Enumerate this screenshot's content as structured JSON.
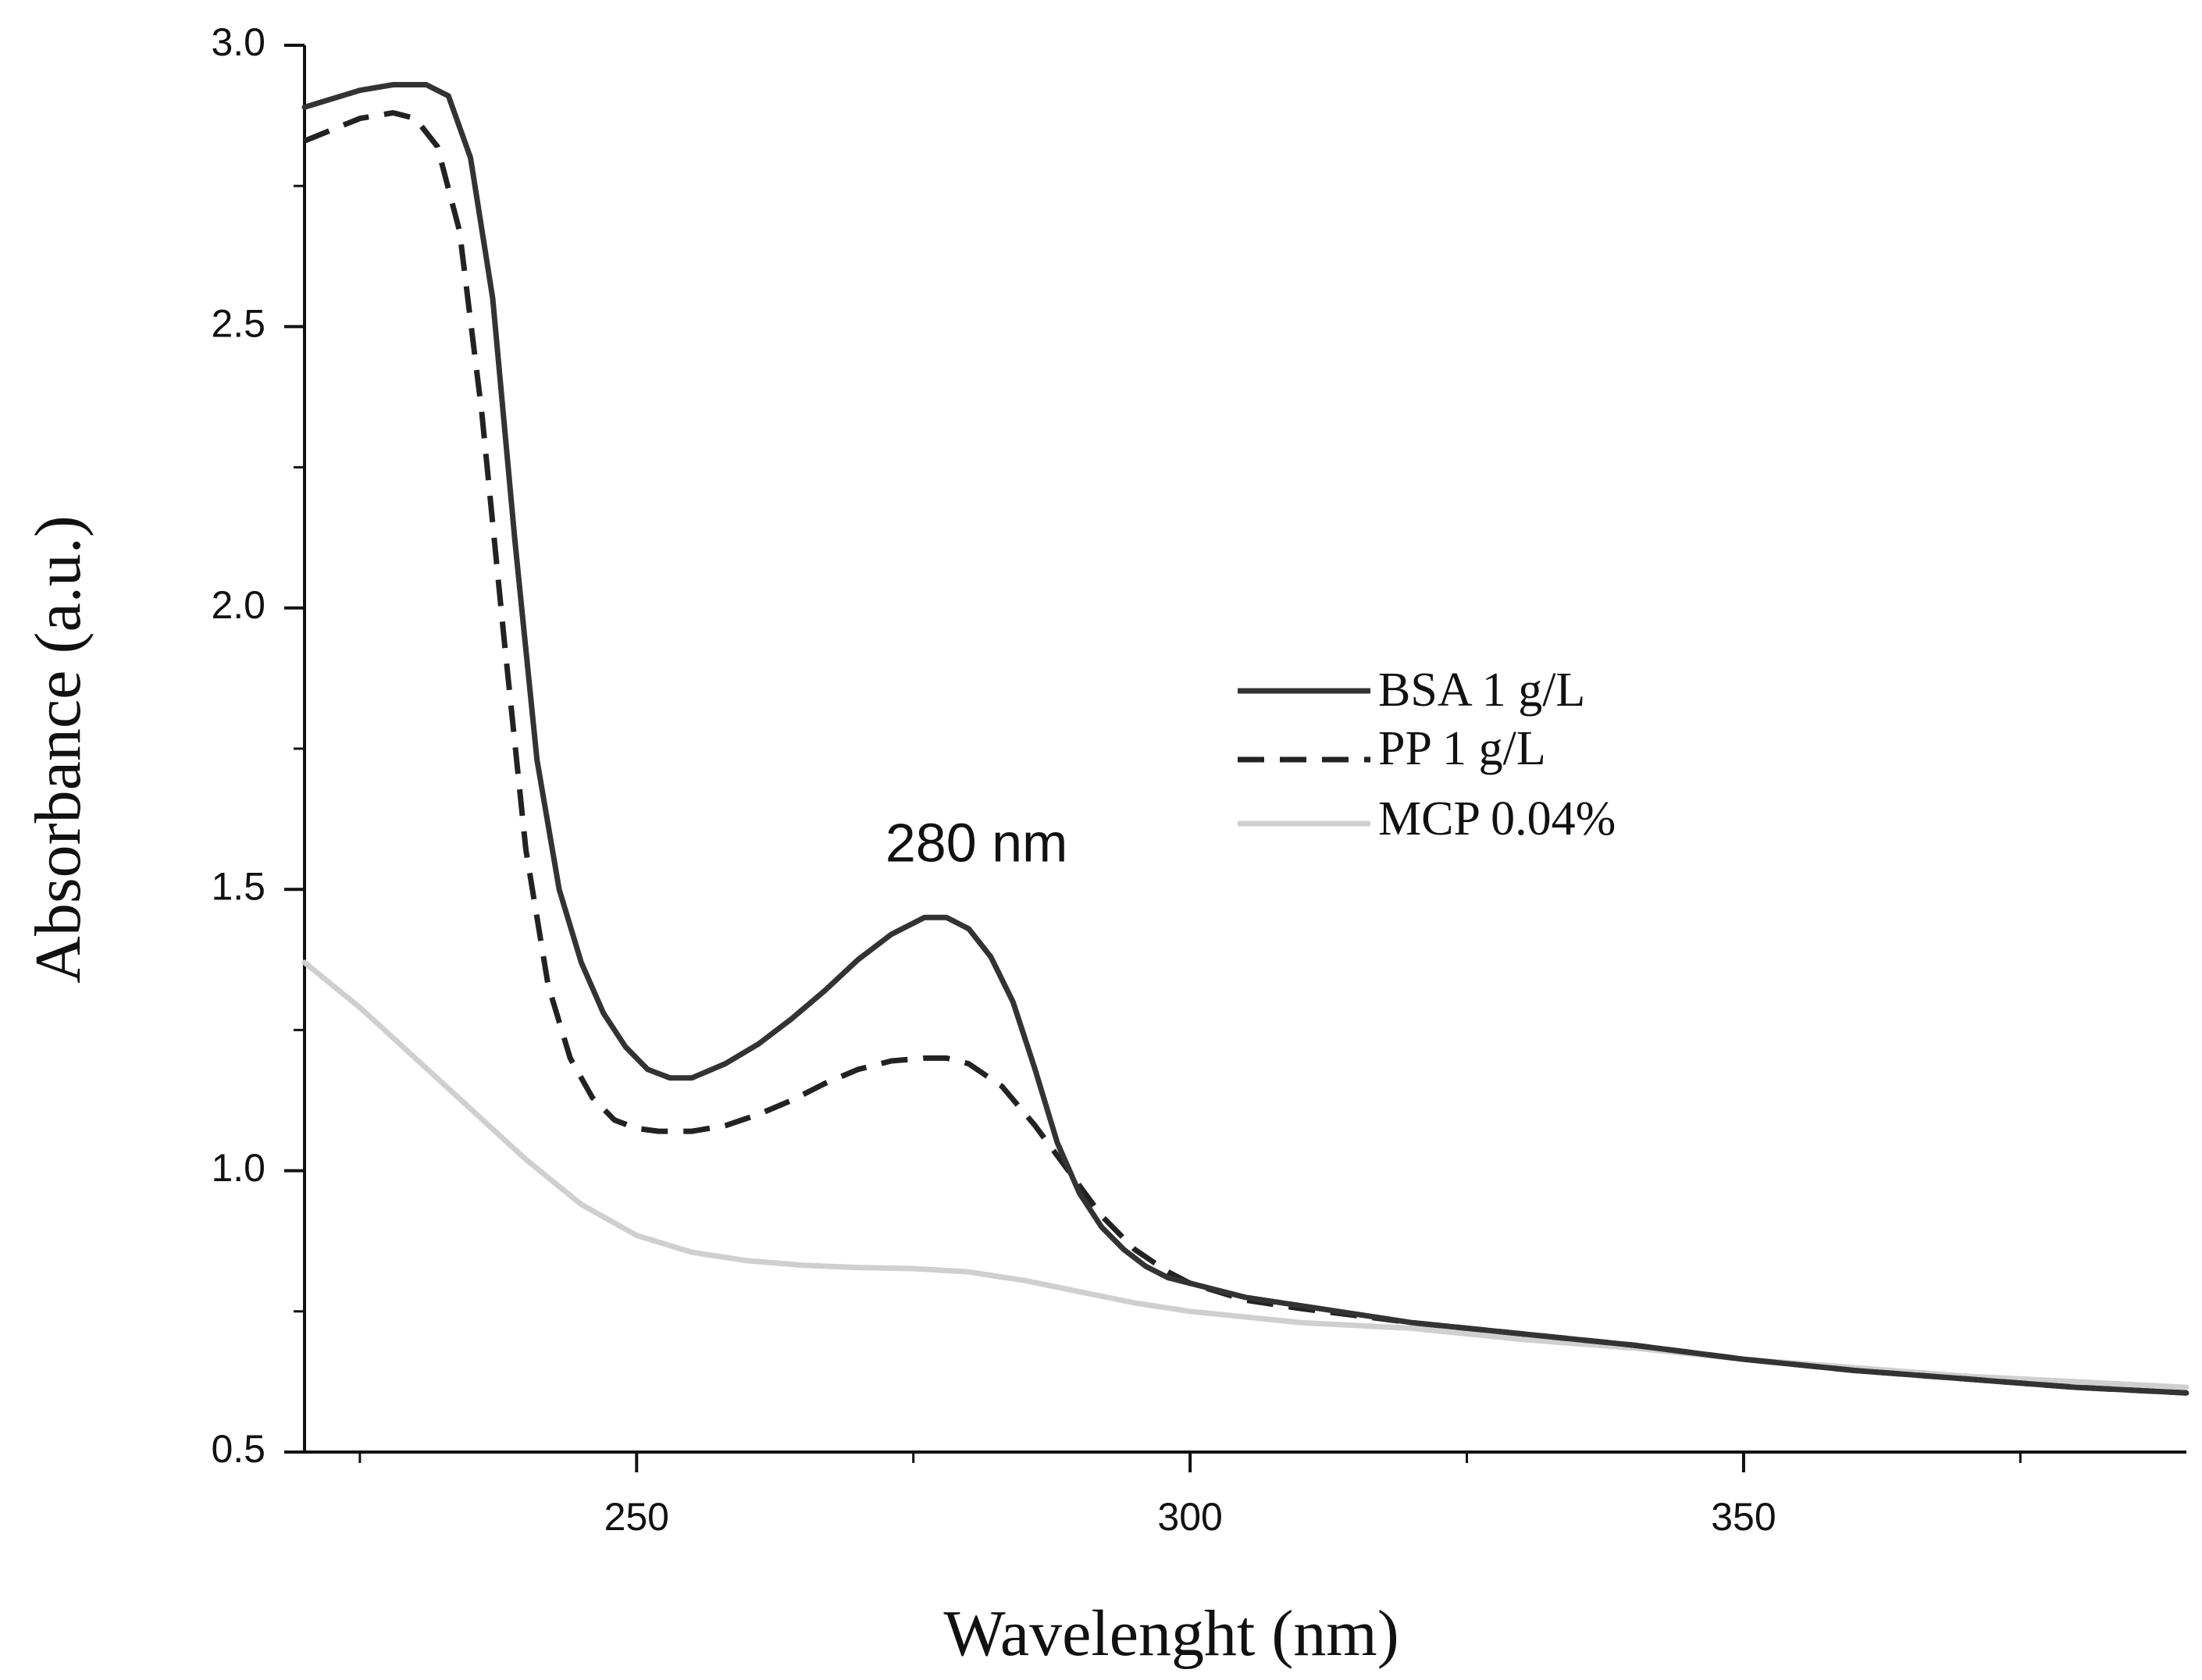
{
  "chart_data": {
    "type": "line",
    "title": "",
    "xlabel": "Wavelenght  (nm)",
    "ylabel": "Absorbance  (a.u.)",
    "xlim": [
      220,
      390
    ],
    "ylim": [
      0.5,
      3.0
    ],
    "xticks": [
      250,
      300,
      350
    ],
    "xtick_labels": [
      "250",
      "300",
      "350"
    ],
    "yticks": [
      0.5,
      1.0,
      1.5,
      2.0,
      2.5,
      3.0
    ],
    "ytick_labels": [
      "0.5",
      "1.0",
      "1.5",
      "2.0",
      "2.5",
      "3.0"
    ],
    "legend_position": "center-right",
    "annotation": {
      "text": "280 nm",
      "x": 280,
      "y": 1.48
    },
    "series": [
      {
        "name": "BSA 1 g/L",
        "color": "#333333",
        "style": "solid",
        "x": [
          220,
          225,
          228,
          231,
          233,
          235,
          237,
          239,
          241,
          243,
          245,
          247,
          249,
          251,
          253,
          255,
          258,
          261,
          264,
          267,
          270,
          273,
          276,
          278,
          280,
          282,
          284,
          286,
          288,
          290,
          292,
          294,
          296,
          298,
          300,
          305,
          310,
          320,
          330,
          340,
          350,
          360,
          370,
          380,
          390
        ],
        "y": [
          2.89,
          2.92,
          2.93,
          2.93,
          2.91,
          2.8,
          2.55,
          2.12,
          1.73,
          1.5,
          1.37,
          1.28,
          1.22,
          1.18,
          1.165,
          1.165,
          1.19,
          1.225,
          1.27,
          1.32,
          1.375,
          1.42,
          1.45,
          1.45,
          1.43,
          1.38,
          1.3,
          1.18,
          1.05,
          0.96,
          0.9,
          0.86,
          0.83,
          0.81,
          0.8,
          0.775,
          0.76,
          0.73,
          0.71,
          0.69,
          0.665,
          0.645,
          0.63,
          0.615,
          0.605
        ]
      },
      {
        "name": "PP 1 g/L",
        "color": "#222222",
        "style": "dashed",
        "x": [
          220,
          225,
          228,
          230,
          232,
          234,
          236,
          238,
          240,
          242,
          244,
          246,
          248,
          250,
          252,
          255,
          258,
          261,
          264,
          267,
          270,
          273,
          276,
          278,
          280,
          283,
          286,
          289,
          292,
          295,
          298,
          300,
          305,
          310,
          320,
          330,
          340,
          350,
          360,
          370,
          380,
          390
        ],
        "y": [
          2.83,
          2.87,
          2.88,
          2.87,
          2.82,
          2.67,
          2.35,
          1.95,
          1.57,
          1.33,
          1.2,
          1.13,
          1.09,
          1.075,
          1.07,
          1.07,
          1.08,
          1.1,
          1.125,
          1.155,
          1.18,
          1.195,
          1.2,
          1.2,
          1.19,
          1.15,
          1.08,
          1.0,
          0.92,
          0.86,
          0.82,
          0.8,
          0.77,
          0.755,
          0.73,
          0.71,
          0.69,
          0.665,
          0.645,
          0.63,
          0.615,
          0.605
        ]
      },
      {
        "name": "MCP 0.04%",
        "color": "#cfcfcf",
        "style": "solid",
        "x": [
          220,
          225,
          230,
          235,
          240,
          245,
          250,
          255,
          260,
          265,
          270,
          275,
          280,
          285,
          290,
          295,
          300,
          305,
          310,
          320,
          330,
          340,
          350,
          360,
          370,
          380,
          390
        ],
        "y": [
          1.37,
          1.29,
          1.2,
          1.11,
          1.02,
          0.94,
          0.885,
          0.855,
          0.84,
          0.832,
          0.828,
          0.826,
          0.82,
          0.805,
          0.785,
          0.765,
          0.75,
          0.74,
          0.73,
          0.72,
          0.7,
          0.685,
          0.665,
          0.65,
          0.635,
          0.625,
          0.615
        ]
      }
    ]
  }
}
